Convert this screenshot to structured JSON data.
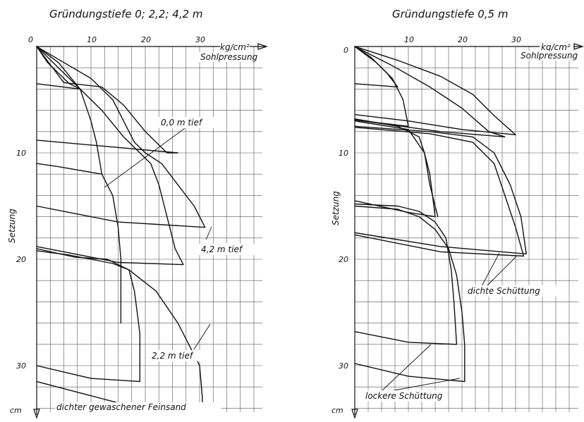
{
  "chart_data": [
    {
      "type": "line",
      "title": "Gründungstiefe 0; 2,2; 4,2 m",
      "x_unit": "kg/cm²",
      "x_label": "Sohlpressung",
      "y_label": "Setzung",
      "y_unit": "cm",
      "x_ticks": [
        "0",
        "10",
        "20",
        "30"
      ],
      "y_ticks": [
        "10",
        "20",
        "30"
      ],
      "xlim": [
        0,
        36
      ],
      "ylim": [
        0,
        36
      ],
      "grid": true,
      "annotations": [
        "0,0 m tief",
        "4,2 m tief",
        "2,2 m tief"
      ],
      "bottom_label": "dichter gewaschener Feinsand",
      "series": [
        {
          "points": [
            [
              0,
              0
            ],
            [
              5,
              3.4
            ],
            [
              12,
              3.8
            ],
            [
              16,
              5.5
            ],
            [
              20,
              8
            ],
            [
              24,
              10
            ],
            [
              26,
              10
            ],
            [
              0,
              8.8
            ]
          ]
        },
        {
          "points": [
            [
              0,
              0
            ],
            [
              2,
              1.5
            ],
            [
              6,
              3.5
            ],
            [
              8,
              4
            ],
            [
              0,
              3.5
            ]
          ]
        },
        {
          "points": [
            [
              0,
              0
            ],
            [
              4,
              1.5
            ],
            [
              8,
              4
            ],
            [
              10,
              7
            ],
            [
              11,
              9
            ],
            [
              12,
              12
            ],
            [
              4,
              11.3
            ],
            [
              0,
              11
            ]
          ]
        },
        {
          "points": [
            [
              12,
              12
            ],
            [
              14,
              14
            ],
            [
              15,
              17
            ],
            [
              15.5,
              20
            ],
            [
              15.5,
              23.5
            ],
            [
              15.5,
              26
            ]
          ]
        },
        {
          "points": [
            [
              0,
              0
            ],
            [
              5,
              1.5
            ],
            [
              10,
              3
            ],
            [
              14,
              5
            ],
            [
              16,
              7
            ],
            [
              18,
              9
            ],
            [
              20,
              10
            ],
            [
              23,
              11
            ],
            [
              26,
              13
            ],
            [
              29,
              15
            ],
            [
              31,
              17
            ],
            [
              15,
              16.5
            ],
            [
              0,
              15
            ]
          ]
        },
        {
          "points": [
            [
              0,
              0
            ],
            [
              6,
              3
            ],
            [
              12,
              6
            ],
            [
              16,
              8.5
            ],
            [
              19,
              10
            ],
            [
              21,
              11
            ],
            [
              22.5,
              13
            ],
            [
              24,
              16
            ],
            [
              25.5,
              19
            ],
            [
              27,
              20.5
            ],
            [
              15,
              20.3
            ],
            [
              0,
              18.8
            ]
          ]
        },
        {
          "points": [
            [
              0,
              19
            ],
            [
              7,
              19.8
            ],
            [
              13,
              20
            ],
            [
              17,
              21
            ],
            [
              22,
              23
            ],
            [
              26,
              26
            ],
            [
              28.5,
              28.5
            ],
            [
              30,
              30
            ],
            [
              30.5,
              33
            ],
            [
              30.5,
              34
            ],
            [
              15,
              33.5
            ],
            [
              0,
              31.5
            ]
          ]
        },
        {
          "points": [
            [
              0,
              19.2
            ],
            [
              6,
              19.6
            ],
            [
              10,
              20
            ],
            [
              14,
              20.4
            ],
            [
              17,
              21
            ],
            [
              18,
              23
            ],
            [
              18.5,
              25
            ],
            [
              19,
              27
            ],
            [
              19,
              31.5
            ],
            [
              10,
              31.2
            ],
            [
              0,
              30
            ]
          ]
        }
      ]
    },
    {
      "type": "line",
      "title": "Gründungstiefe 0,5 m",
      "x_unit": "kg/cm²",
      "x_label": "Sohlpressung",
      "y_label": "Setzung",
      "y_unit": "cm",
      "x_ticks": [
        "0",
        "10",
        "20",
        "30"
      ],
      "y_ticks": [
        "10",
        "20",
        "30"
      ],
      "xlim": [
        0,
        36
      ],
      "ylim": [
        0,
        36
      ],
      "grid": true,
      "annotations": [
        "dichte Schüttung",
        "lockere Schüttung"
      ],
      "series": [
        {
          "points": [
            [
              0,
              0
            ],
            [
              8,
              1.3
            ],
            [
              16,
              2.8
            ],
            [
              22,
              4.5
            ],
            [
              26,
              6.5
            ],
            [
              30,
              8.3
            ],
            [
              20,
              7.8
            ],
            [
              10,
              7
            ],
            [
              0,
              6.4
            ]
          ]
        },
        {
          "points": [
            [
              0,
              0
            ],
            [
              7,
              1.8
            ],
            [
              14,
              3.8
            ],
            [
              20,
              5.8
            ],
            [
              25,
              8
            ],
            [
              28,
              8.5
            ],
            [
              16,
              8
            ],
            [
              0,
              6.9
            ]
          ]
        },
        {
          "points": [
            [
              0,
              0
            ],
            [
              3,
              1
            ],
            [
              6,
              2.5
            ],
            [
              8,
              3.8
            ],
            [
              0,
              3.5
            ]
          ]
        },
        {
          "points": [
            [
              0,
              0
            ],
            [
              4,
              1.5
            ],
            [
              7,
              3
            ],
            [
              9,
              5
            ],
            [
              10,
              7.5
            ],
            [
              0,
              6.9
            ]
          ]
        },
        {
          "points": [
            [
              0,
              6.8
            ],
            [
              8,
              7.5
            ],
            [
              12,
              8.5
            ],
            [
              13,
              10
            ],
            [
              14,
              12
            ],
            [
              14.5,
              14
            ],
            [
              15,
              16
            ],
            [
              10,
              15.6
            ],
            [
              0,
              14.5
            ]
          ]
        },
        {
          "points": [
            [
              0,
              7
            ],
            [
              10,
              7.8
            ],
            [
              13,
              10
            ],
            [
              14,
              13
            ],
            [
              15,
              15
            ],
            [
              15.5,
              16
            ]
          ]
        },
        {
          "points": [
            [
              0,
              7.5
            ],
            [
              14,
              8
            ],
            [
              22,
              8.5
            ],
            [
              26,
              10
            ],
            [
              29,
              13
            ],
            [
              31,
              16
            ],
            [
              32,
              19.5
            ],
            [
              16,
              18.8
            ],
            [
              0,
              17.5
            ]
          ]
        },
        {
          "points": [
            [
              0,
              7.6
            ],
            [
              14,
              8.2
            ],
            [
              22,
              9
            ],
            [
              26,
              11
            ],
            [
              28,
              14
            ],
            [
              30,
              17
            ],
            [
              31.5,
              19.7
            ],
            [
              16,
              19.3
            ],
            [
              0,
              17.7
            ]
          ]
        },
        {
          "points": [
            [
              0,
              14.8
            ],
            [
              8,
              15
            ],
            [
              12,
              15.5
            ],
            [
              15,
              16.5
            ],
            [
              17,
              18
            ],
            [
              18,
              21
            ],
            [
              18.5,
              24
            ],
            [
              19,
              28
            ],
            [
              10,
              27.8
            ],
            [
              0,
              26.8
            ]
          ]
        },
        {
          "points": [
            [
              0,
              15
            ],
            [
              8,
              15.3
            ],
            [
              12,
              16
            ],
            [
              15,
              17.2
            ],
            [
              17.5,
              19
            ],
            [
              19,
              21.5
            ],
            [
              20,
              25
            ],
            [
              20.5,
              28
            ],
            [
              20.5,
              31.5
            ],
            [
              10,
              31
            ],
            [
              0,
              29.8
            ]
          ]
        }
      ]
    }
  ]
}
